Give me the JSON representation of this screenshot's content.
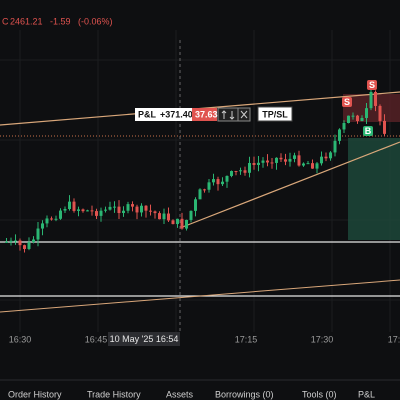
{
  "header": {
    "symbol_prefix": "C",
    "price": "2461.21",
    "change": "-1.59",
    "change_pct": "(-0.06%)"
  },
  "position": {
    "pnl_label": "P&L",
    "pnl_value": "+371.40",
    "qty": "37.63",
    "tpsl": "TP/SL"
  },
  "markers": [
    {
      "label": "S"
    },
    {
      "label": "S"
    },
    {
      "label": "B"
    }
  ],
  "time_axis": {
    "labels": [
      "16:30",
      "16:45",
      "17:15",
      "17:30",
      "17:"
    ],
    "crosshair": "10 May '25  16:54"
  },
  "tabs": [
    "Order History",
    "Trade History",
    "Assets",
    "Borrowings (0)",
    "Tools (0)",
    "P&L"
  ]
}
